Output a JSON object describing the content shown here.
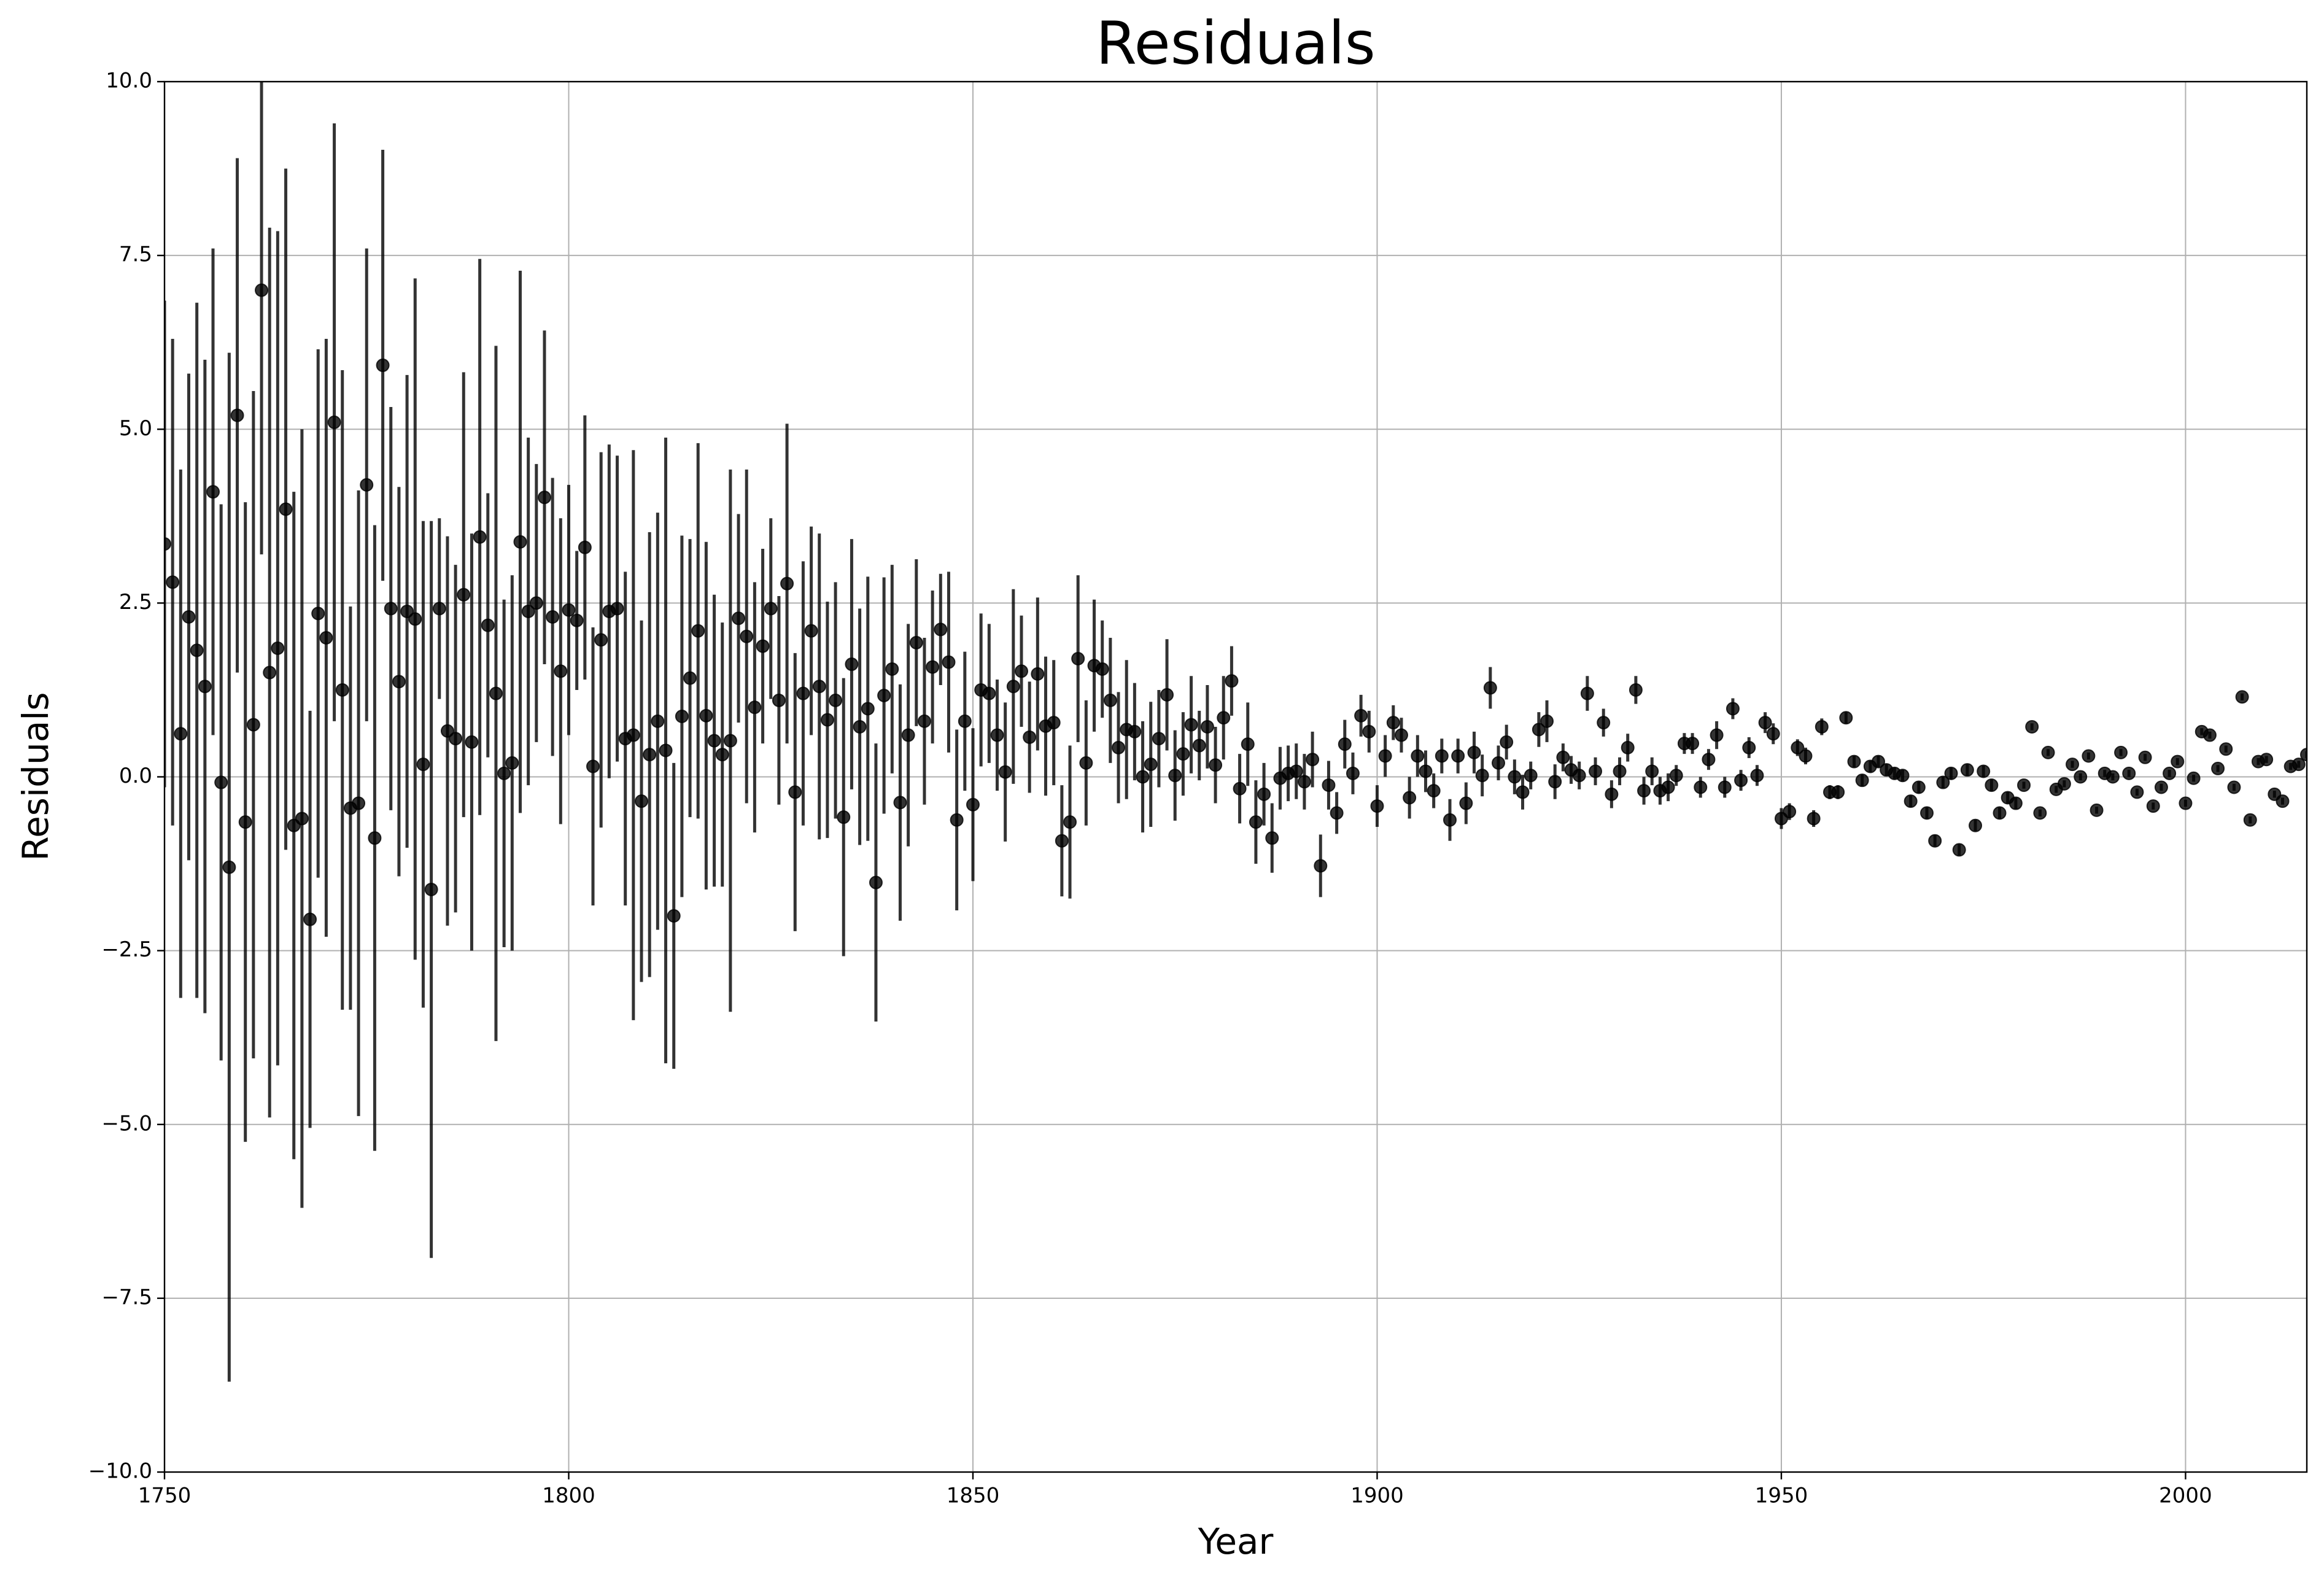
{
  "chart_data": {
    "type": "scatter",
    "title": "Residuals",
    "xlabel": "Year",
    "ylabel": "Residuals",
    "color": "#000000",
    "opacity": 0.8,
    "grid": true,
    "xlim": [
      1750,
      2015
    ],
    "ylim": [
      -10,
      10
    ],
    "xticks": [
      1750,
      1800,
      1850,
      1900,
      1950,
      2000
    ],
    "yticks": [
      {
        "value": -10,
        "label": "−10.0"
      },
      {
        "value": -7.5,
        "label": "−7.5"
      },
      {
        "value": -5,
        "label": "−5.0"
      },
      {
        "value": -2.5,
        "label": "−2.5"
      },
      {
        "value": 0,
        "label": "0.0"
      },
      2.5,
      {
        "value": 5,
        "label": "5.0"
      },
      7.5,
      {
        "value": 10,
        "label": "10.0"
      }
    ],
    "x": [
      1750,
      1751,
      1752,
      1753,
      1754,
      1755,
      1756,
      1757,
      1758,
      1759,
      1760,
      1761,
      1762,
      1763,
      1764,
      1765,
      1766,
      1767,
      1768,
      1769,
      1770,
      1771,
      1772,
      1773,
      1774,
      1775,
      1776,
      1777,
      1778,
      1779,
      1780,
      1781,
      1782,
      1783,
      1784,
      1785,
      1786,
      1787,
      1788,
      1789,
      1790,
      1791,
      1792,
      1793,
      1794,
      1795,
      1796,
      1797,
      1798,
      1799,
      1800,
      1801,
      1802,
      1803,
      1804,
      1805,
      1806,
      1807,
      1808,
      1809,
      1810,
      1811,
      1812,
      1813,
      1814,
      1815,
      1816,
      1817,
      1818,
      1819,
      1820,
      1821,
      1822,
      1823,
      1824,
      1825,
      1826,
      1827,
      1828,
      1829,
      1830,
      1831,
      1832,
      1833,
      1834,
      1835,
      1836,
      1837,
      1838,
      1839,
      1840,
      1841,
      1842,
      1843,
      1844,
      1845,
      1846,
      1847,
      1848,
      1849,
      1850,
      1851,
      1852,
      1853,
      1854,
      1855,
      1856,
      1857,
      1858,
      1859,
      1860,
      1861,
      1862,
      1863,
      1864,
      1865,
      1866,
      1867,
      1868,
      1869,
      1870,
      1871,
      1872,
      1873,
      1874,
      1875,
      1876,
      1877,
      1878,
      1879,
      1880,
      1881,
      1882,
      1883,
      1884,
      1885,
      1886,
      1887,
      1888,
      1889,
      1890,
      1891,
      1892,
      1893,
      1894,
      1895,
      1896,
      1897,
      1898,
      1899,
      1900,
      1901,
      1902,
      1903,
      1904,
      1905,
      1906,
      1907,
      1908,
      1909,
      1910,
      1911,
      1912,
      1913,
      1914,
      1915,
      1916,
      1917,
      1918,
      1919,
      1920,
      1921,
      1922,
      1923,
      1924,
      1925,
      1926,
      1927,
      1928,
      1929,
      1930,
      1931,
      1932,
      1933,
      1934,
      1935,
      1936,
      1937,
      1938,
      1939,
      1940,
      1941,
      1942,
      1943,
      1944,
      1945,
      1946,
      1947,
      1948,
      1949,
      1950,
      1951,
      1952,
      1953,
      1954,
      1955,
      1956,
      1957,
      1958,
      1959,
      1960,
      1961,
      1962,
      1963,
      1964,
      1965,
      1966,
      1967,
      1968,
      1969,
      1970,
      1971,
      1972,
      1973,
      1974,
      1975,
      1976,
      1977,
      1978,
      1979,
      1980,
      1981,
      1982,
      1983,
      1984,
      1985,
      1986,
      1987,
      1988,
      1989,
      1990,
      1991,
      1992,
      1993,
      1994,
      1995,
      1996,
      1997,
      1998,
      1999,
      2000,
      2001,
      2002,
      2003,
      2004,
      2005,
      2006,
      2007,
      2008,
      2009,
      2010,
      2011,
      2012,
      2013,
      2014,
      2015
    ],
    "values": [
      3.35,
      2.8,
      0.62,
      2.3,
      1.82,
      1.3,
      4.1,
      -0.08,
      -1.3,
      5.2,
      -0.65,
      0.75,
      7.0,
      1.5,
      1.85,
      3.85,
      -0.7,
      -0.6,
      -2.05,
      2.35,
      2.0,
      5.1,
      1.25,
      -0.45,
      -0.38,
      4.2,
      -0.88,
      5.92,
      2.42,
      1.37,
      2.38,
      2.27,
      0.18,
      -1.62,
      2.42,
      0.66,
      0.55,
      2.62,
      0.5,
      3.45,
      2.18,
      1.2,
      0.05,
      0.2,
      3.38,
      2.38,
      2.5,
      4.02,
      2.3,
      1.52,
      2.4,
      2.25,
      3.3,
      0.15,
      1.97,
      2.38,
      2.42,
      0.55,
      0.6,
      -0.35,
      0.32,
      0.8,
      0.38,
      -2.0,
      0.87,
      1.42,
      2.1,
      0.88,
      0.52,
      0.32,
      0.52,
      2.28,
      2.02,
      1.0,
      1.88,
      2.42,
      1.1,
      2.78,
      -0.22,
      1.2,
      2.1,
      1.3,
      0.82,
      1.1,
      -0.58,
      1.62,
      0.72,
      0.98,
      -1.52,
      1.17,
      1.55,
      -0.37,
      0.6,
      1.93,
      0.8,
      1.58,
      2.12,
      1.65,
      -0.62,
      0.8,
      -0.4,
      1.25,
      1.2,
      0.6,
      0.07,
      1.3,
      1.52,
      0.57,
      1.48,
      0.73,
      0.78,
      -0.92,
      -0.65,
      1.7,
      0.2,
      1.6,
      1.55,
      1.1,
      0.42,
      0.68,
      0.65,
      0.0,
      0.18,
      0.55,
      1.18,
      0.02,
      0.33,
      0.75,
      0.45,
      0.72,
      0.17,
      0.85,
      1.38,
      -0.17,
      0.47,
      -0.65,
      -0.25,
      -0.88,
      -0.02,
      0.05,
      0.08,
      -0.07,
      0.25,
      -1.28,
      -0.12,
      -0.52,
      0.47,
      0.05,
      0.88,
      0.65,
      -0.42,
      0.3,
      0.78,
      0.6,
      -0.3,
      0.3,
      0.08,
      -0.2,
      0.3,
      -0.62,
      0.3,
      -0.38,
      0.35,
      0.02,
      1.28,
      0.2,
      0.5,
      0.0,
      -0.22,
      0.02,
      0.68,
      0.8,
      -0.07,
      0.28,
      0.1,
      0.02,
      1.2,
      0.08,
      0.78,
      -0.25,
      0.08,
      0.42,
      1.25,
      -0.2,
      0.08,
      -0.2,
      -0.15,
      0.02,
      0.48,
      0.48,
      -0.15,
      0.25,
      0.6,
      -0.15,
      0.98,
      -0.05,
      0.42,
      0.02,
      0.78,
      0.62,
      -0.6,
      -0.5,
      0.42,
      0.3,
      -0.6,
      0.72,
      -0.22,
      -0.22,
      0.85,
      0.22,
      -0.05,
      0.15,
      0.22,
      0.1,
      0.05,
      0.02,
      -0.35,
      -0.15,
      -0.52,
      -0.92,
      -0.08,
      0.05,
      -1.05,
      0.1,
      -0.7,
      0.08,
      -0.12,
      -0.52,
      -0.3,
      -0.38,
      -0.12,
      0.72,
      -0.52,
      0.35,
      -0.18,
      -0.1,
      0.18,
      0.0,
      0.3,
      -0.48,
      0.05,
      0.0,
      0.35,
      0.05,
      -0.22,
      0.28,
      -0.42,
      -0.15,
      0.05,
      0.22,
      -0.38,
      -0.02,
      0.65,
      0.6,
      0.12,
      0.4,
      -0.15,
      1.15,
      -0.62,
      0.22,
      0.25,
      -0.25,
      -0.35,
      0.15,
      0.18,
      0.32
    ],
    "errors": [
      3.5,
      3.5,
      3.8,
      3.5,
      5.0,
      4.7,
      3.5,
      4.0,
      7.4,
      3.7,
      4.6,
      4.8,
      3.8,
      6.4,
      6.0,
      4.9,
      4.8,
      5.6,
      3.0,
      3.8,
      4.3,
      4.3,
      4.6,
      2.9,
      4.5,
      3.4,
      4.5,
      3.1,
      2.9,
      2.8,
      3.4,
      4.9,
      3.5,
      5.3,
      1.3,
      2.8,
      2.5,
      3.2,
      3.0,
      4.0,
      1.9,
      5.0,
      2.5,
      2.7,
      3.9,
      2.5,
      2.0,
      2.4,
      2.0,
      2.2,
      1.8,
      1.0,
      1.9,
      2.0,
      2.7,
      2.4,
      2.2,
      2.4,
      4.1,
      2.6,
      3.2,
      3.0,
      4.5,
      2.2,
      2.6,
      2.0,
      2.7,
      2.5,
      2.1,
      1.9,
      3.9,
      1.5,
      2.4,
      1.8,
      1.4,
      1.3,
      1.5,
      2.3,
      2.0,
      1.9,
      1.5,
      2.2,
      1.7,
      1.7,
      2.0,
      1.8,
      1.7,
      1.9,
      2.0,
      1.7,
      1.5,
      1.7,
      1.6,
      1.2,
      1.2,
      1.1,
      0.8,
      1.3,
      1.3,
      1.0,
      1.1,
      1.1,
      1.0,
      0.8,
      1.0,
      1.4,
      0.8,
      0.8,
      1.1,
      1.0,
      0.9,
      0.8,
      1.1,
      1.2,
      0.9,
      0.95,
      0.7,
      0.9,
      0.8,
      1.0,
      0.7,
      0.8,
      0.9,
      0.7,
      0.8,
      0.65,
      0.6,
      0.7,
      0.5,
      0.6,
      0.55,
      0.6,
      0.5,
      0.5,
      0.6,
      0.6,
      0.45,
      0.5,
      0.45,
      0.4,
      0.4,
      0.4,
      0.4,
      0.45,
      0.35,
      0.3,
      0.35,
      0.3,
      0.3,
      0.3,
      0.3,
      0.3,
      0.25,
      0.25,
      0.3,
      0.3,
      0.3,
      0.25,
      0.25,
      0.3,
      0.25,
      0.3,
      0.3,
      0.3,
      0.3,
      0.25,
      0.25,
      0.25,
      0.25,
      0.2,
      0.25,
      0.3,
      0.25,
      0.2,
      0.2,
      0.2,
      0.25,
      0.2,
      0.2,
      0.2,
      0.2,
      0.2,
      0.2,
      0.2,
      0.2,
      0.2,
      0.2,
      0.15,
      0.15,
      0.15,
      0.15,
      0.15,
      0.2,
      0.15,
      0.15,
      0.15,
      0.15,
      0.15,
      0.15,
      0.15,
      0.15,
      0.12,
      0.12,
      0.12,
      0.12,
      0.12,
      0.1,
      0.1,
      0.08,
      0.08,
      0.08,
      0.08,
      0.08,
      0.08,
      0.08,
      0.08,
      0.08,
      0.08,
      0.08,
      0.08,
      0.08,
      0.08,
      0.08,
      0.08,
      0.08,
      0.08,
      0.08,
      0.08,
      0.08,
      0.08,
      0.05,
      0.05,
      0.05,
      0.05,
      0.05,
      0.05,
      0.05,
      0.05,
      0.05,
      0.05,
      0.05,
      0.05,
      0.05,
      0.05,
      0.05,
      0.05,
      0.05,
      0.05,
      0.05,
      0.05,
      0.05,
      0.05,
      0.05,
      0.05,
      0.05,
      0.05,
      0.05,
      0.05,
      0.05,
      0.05,
      0.05,
      0.05,
      0.05,
      0.05,
      0.05,
      0.05
    ]
  }
}
